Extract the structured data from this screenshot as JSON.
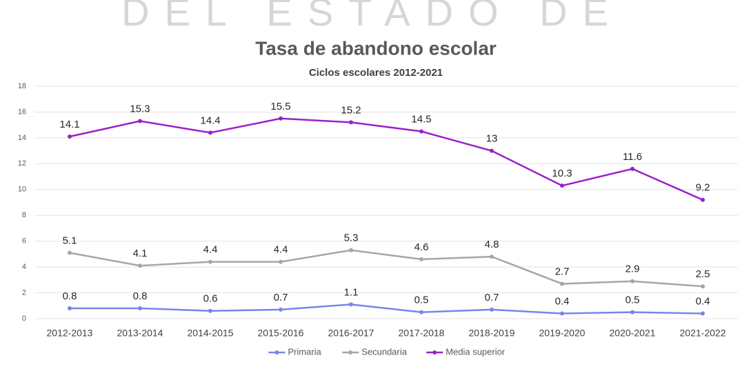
{
  "banner": "DEL ESTADO DE",
  "chart_data": {
    "type": "line",
    "title": "Tasa de abandono escolar",
    "subtitle": "Ciclos escolares 2012-2021",
    "categories": [
      "2012-2013",
      "2013-2014",
      "2014-2015",
      "2015-2016",
      "2016-2017",
      "2017-2018",
      "2018-2019",
      "2019-2020",
      "2020-2021",
      "2021-2022"
    ],
    "series": [
      {
        "name": "Primaria",
        "color": "#7b83eb",
        "values": [
          0.8,
          0.8,
          0.6,
          0.7,
          1.1,
          0.5,
          0.7,
          0.4,
          0.5,
          0.4
        ]
      },
      {
        "name": "Secundaria",
        "color": "#a6a6a6",
        "values": [
          5.1,
          4.1,
          4.4,
          4.4,
          5.3,
          4.6,
          4.8,
          2.7,
          2.9,
          2.5
        ]
      },
      {
        "name": "Media superior",
        "color": "#9a1fc9",
        "values": [
          14.1,
          15.3,
          14.4,
          15.5,
          15.2,
          14.5,
          13,
          10.3,
          11.6,
          9.2
        ]
      }
    ],
    "ylim": [
      0,
      18
    ],
    "yticks": [
      0,
      2,
      4,
      6,
      8,
      10,
      12,
      14,
      16,
      18
    ],
    "grid": true,
    "legend": "bottom"
  }
}
